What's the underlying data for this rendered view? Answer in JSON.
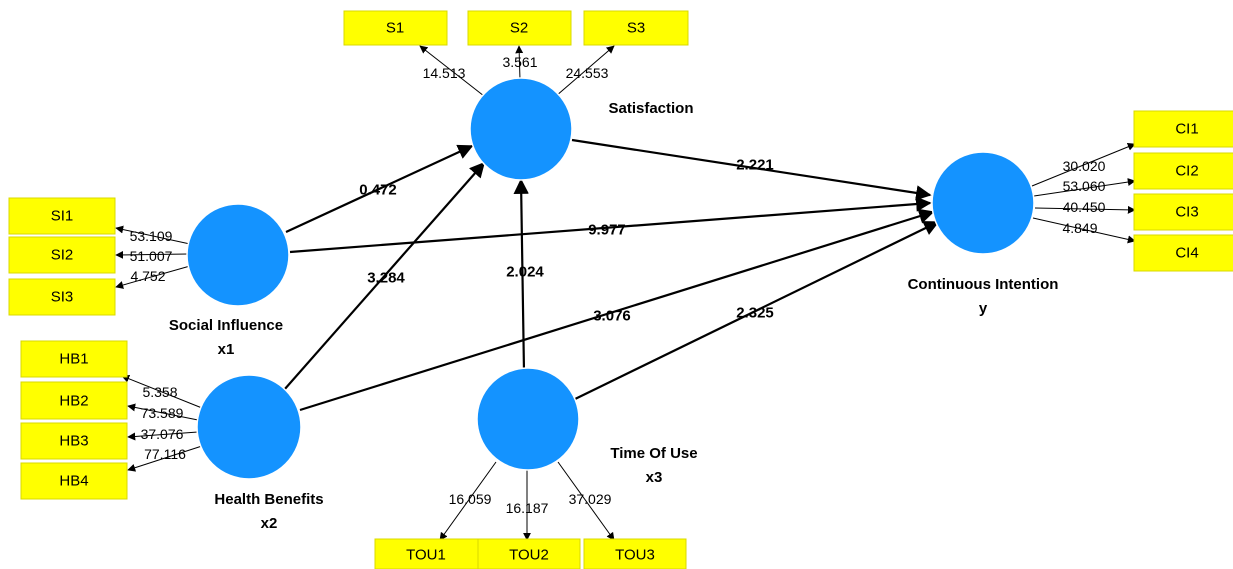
{
  "constructs": {
    "satisfaction": {
      "name": "Satisfaction",
      "sub": ""
    },
    "social_influence": {
      "name": "Social Influence",
      "sub": "x1"
    },
    "health_benefits": {
      "name": "Health Benefits",
      "sub": "x2"
    },
    "time_of_use": {
      "name": "Time Of Use",
      "sub": "x3"
    },
    "continuous_intention": {
      "name": "Continuous Intention",
      "sub": "y"
    }
  },
  "indicators": {
    "S1": "S1",
    "S2": "S2",
    "S3": "S3",
    "SI1": "SI1",
    "SI2": "SI2",
    "SI3": "SI3",
    "HB1": "HB1",
    "HB2": "HB2",
    "HB3": "HB3",
    "HB4": "HB4",
    "TOU1": "TOU1",
    "TOU2": "TOU2",
    "TOU3": "TOU3",
    "CI1": "CI1",
    "CI2": "CI2",
    "CI3": "CI3",
    "CI4": "CI4"
  },
  "loadings": {
    "S1": "14.513",
    "S2": "3.561",
    "S3": "24.553",
    "SI1": "53.109",
    "SI2": "51.007",
    "SI3": "4.752",
    "HB1": "5.358",
    "HB2": "73.589",
    "HB3": "37.076",
    "HB4": "77.116",
    "TOU1": "16.059",
    "TOU2": "16.187",
    "TOU3": "37.029",
    "CI1": "30.020",
    "CI2": "53.060",
    "CI3": "40.450",
    "CI4": "4.849"
  },
  "paths": {
    "si_sat": "0.472",
    "hb_sat": "3.284",
    "tou_sat": "2.024",
    "sat_ci": "2.221",
    "si_ci": "9.977",
    "hb_ci": "3.076",
    "tou_ci": "2.325"
  },
  "colors": {
    "construct": "#1493ff",
    "indicator": "#ffff00"
  }
}
